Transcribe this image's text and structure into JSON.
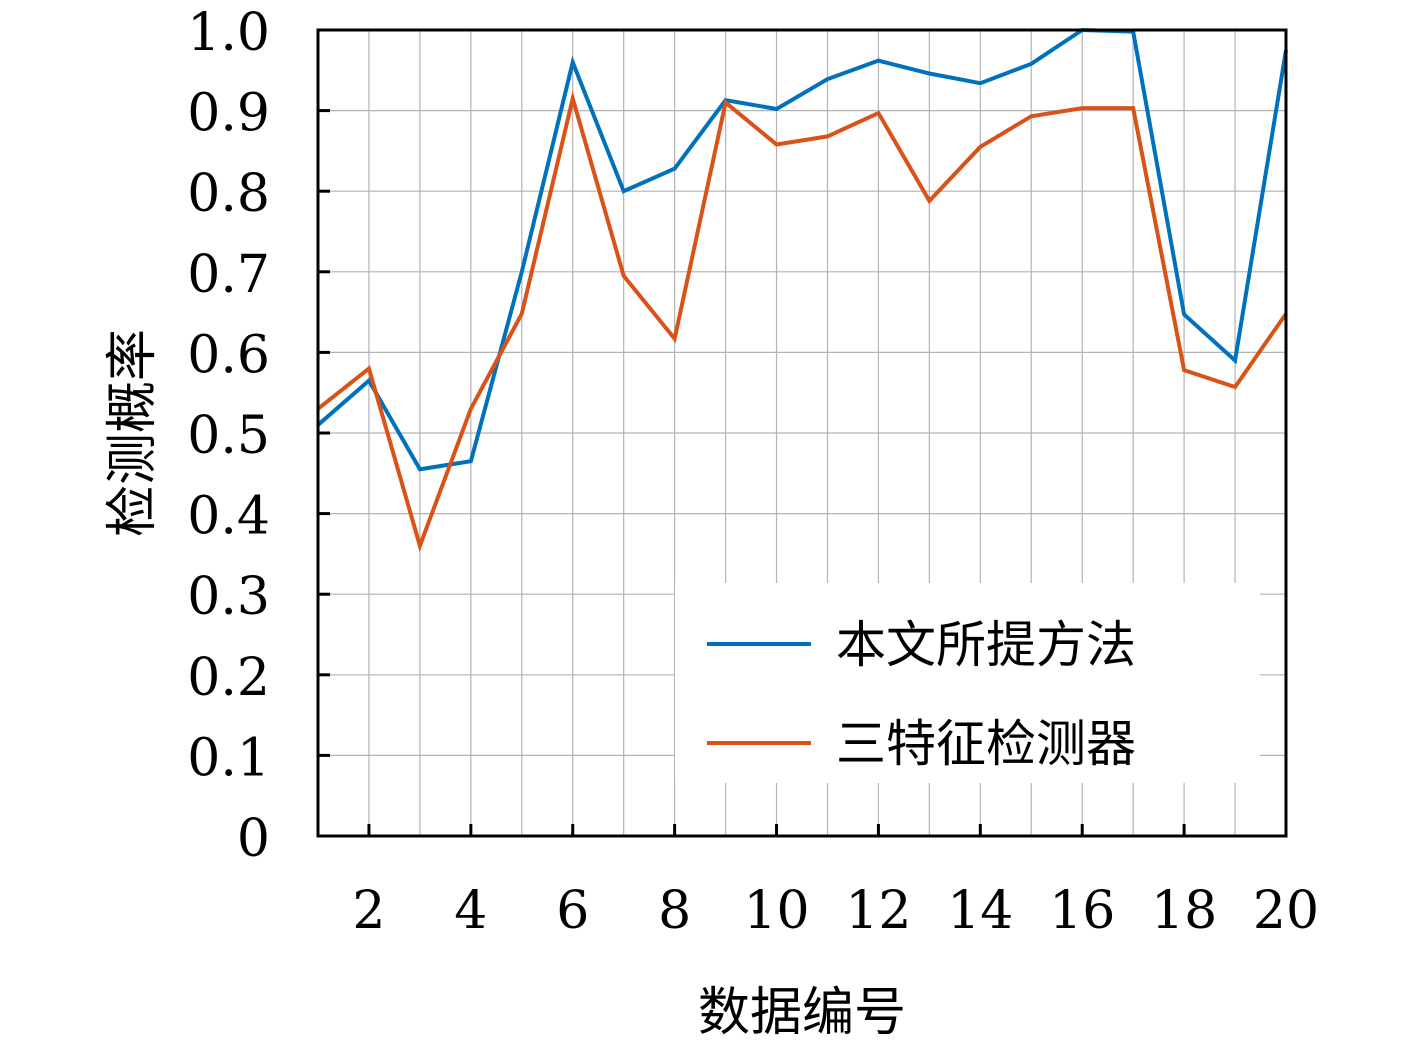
{
  "chart_data": {
    "type": "line",
    "title": "",
    "xlabel": "数据编号",
    "ylabel": "检测概率",
    "xlim": [
      1,
      20
    ],
    "ylim": [
      0,
      1.0
    ],
    "x": [
      1,
      2,
      3,
      4,
      5,
      6,
      7,
      8,
      9,
      10,
      11,
      12,
      13,
      14,
      15,
      16,
      17,
      18,
      19,
      20
    ],
    "xticks": [
      2,
      4,
      6,
      8,
      10,
      12,
      14,
      16,
      18,
      20
    ],
    "xtick_labels": [
      "2",
      "4",
      "6",
      "8",
      "10",
      "12",
      "14",
      "16",
      "18",
      "20"
    ],
    "yticks": [
      0,
      0.1,
      0.2,
      0.3,
      0.4,
      0.5,
      0.6,
      0.7,
      0.8,
      0.9,
      1.0
    ],
    "ytick_labels": [
      "0",
      "0.1",
      "0.2",
      "0.3",
      "0.4",
      "0.5",
      "0.6",
      "0.7",
      "0.8",
      "0.9",
      "1.0"
    ],
    "grid": true,
    "legend_position": "bottom-right",
    "series": [
      {
        "name": "本文所提方法",
        "color": "#0072BD",
        "values": [
          0.51,
          0.565,
          0.455,
          0.465,
          0.7,
          0.96,
          0.8,
          0.828,
          0.913,
          0.902,
          0.939,
          0.962,
          0.946,
          0.934,
          0.958,
          1.0,
          0.998,
          0.647,
          0.59,
          0.975
        ]
      },
      {
        "name": "三特征检测器",
        "color": "#D95319",
        "values": [
          0.53,
          0.58,
          0.36,
          0.53,
          0.648,
          0.915,
          0.695,
          0.617,
          0.91,
          0.858,
          0.868,
          0.897,
          0.788,
          0.855,
          0.893,
          0.903,
          0.903,
          0.578,
          0.557,
          0.648
        ]
      }
    ]
  }
}
